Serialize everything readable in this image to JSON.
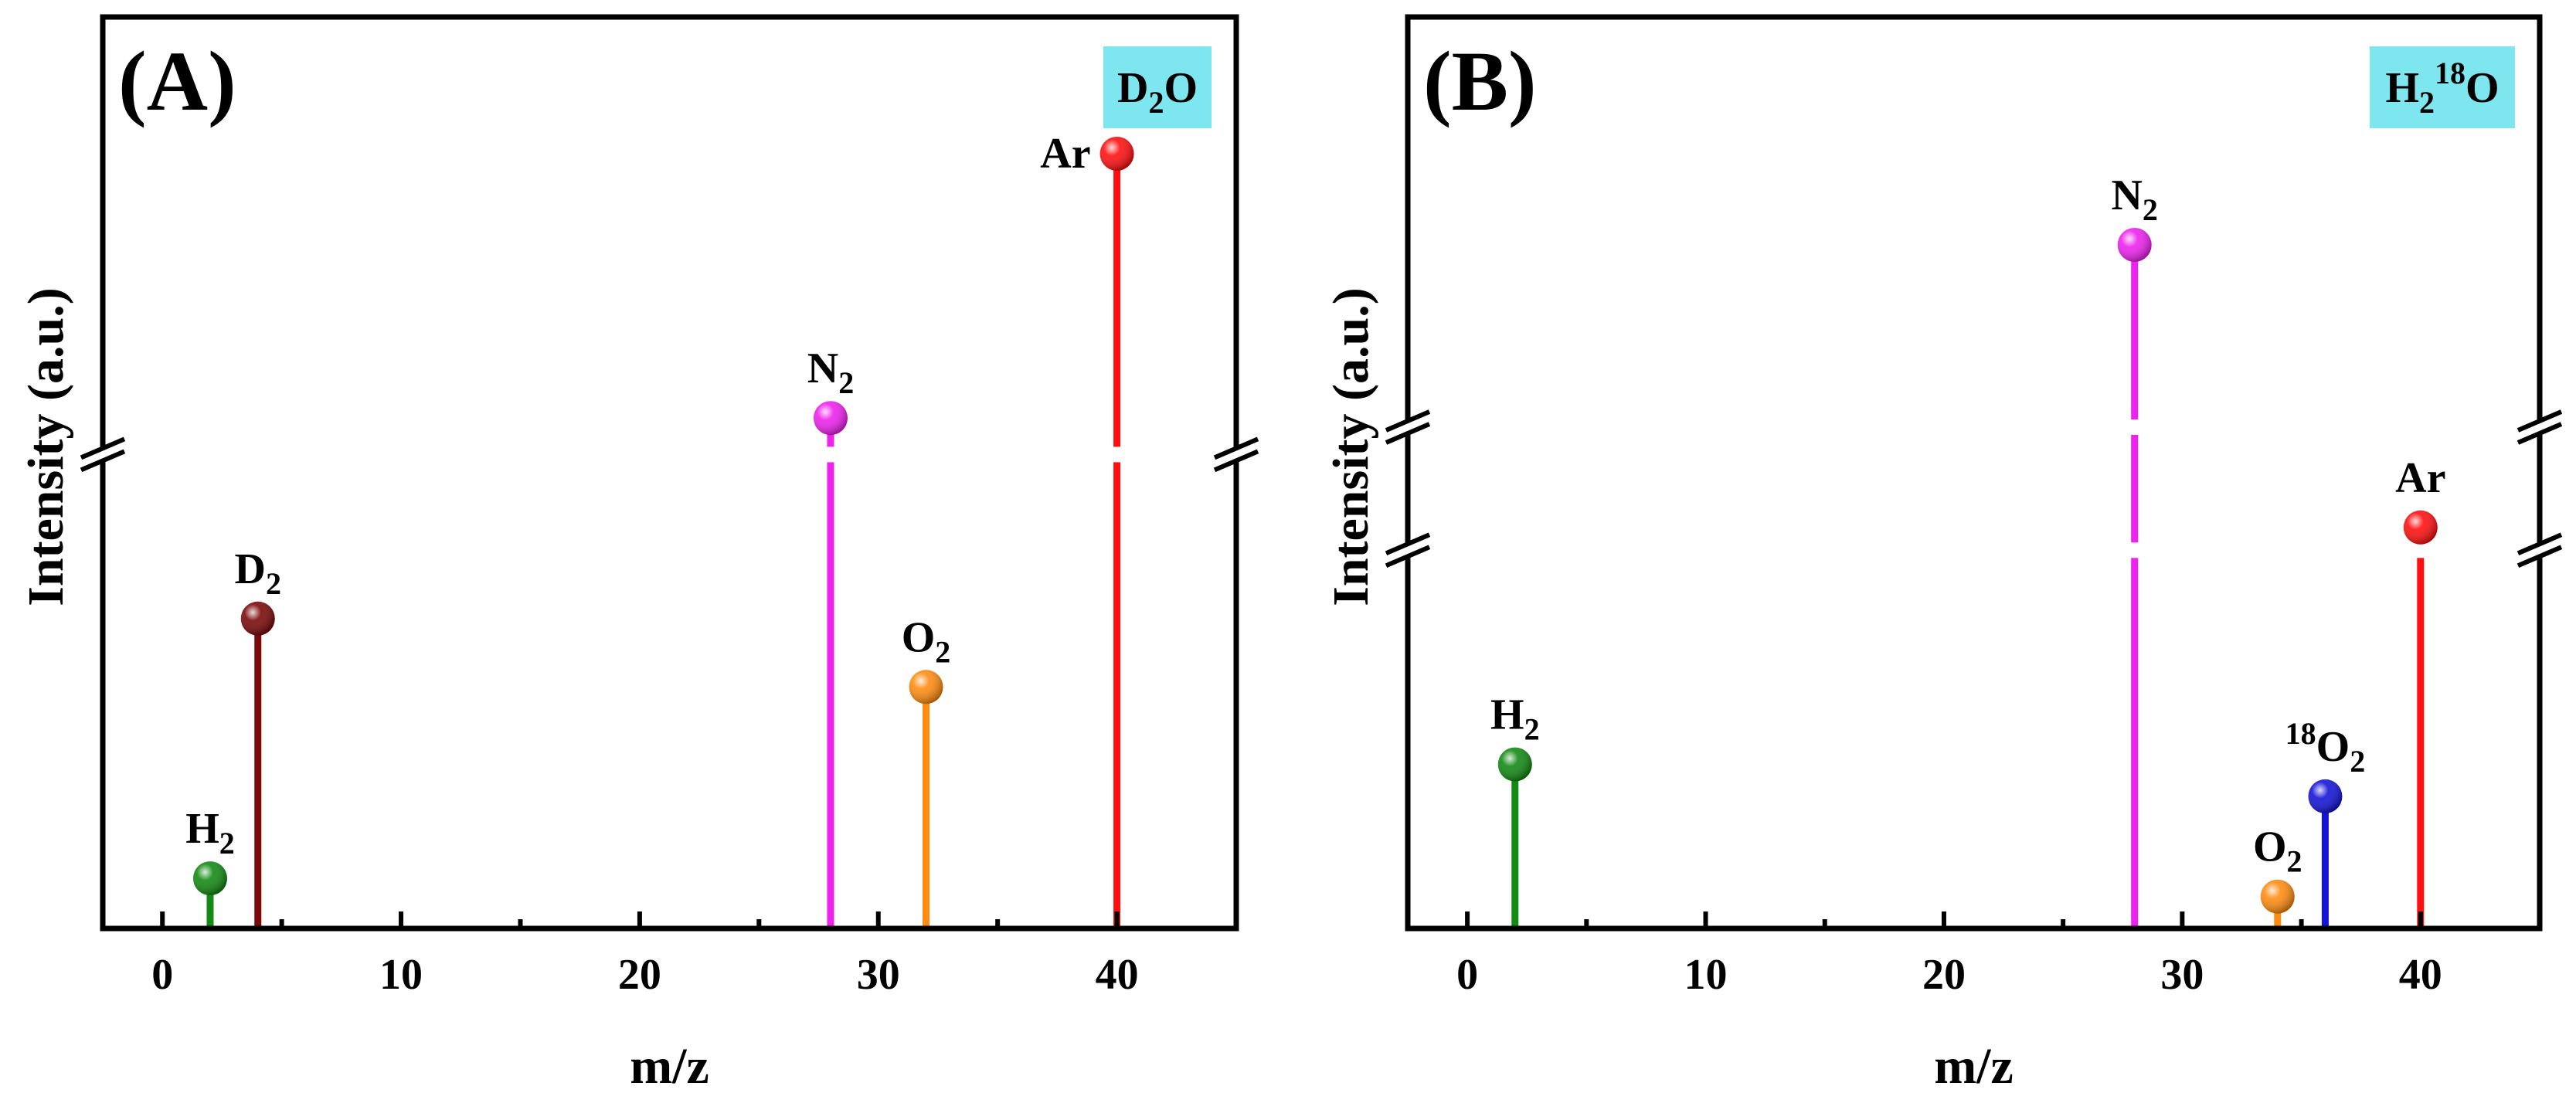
{
  "chart_data": [
    {
      "type": "stem",
      "panel_label": "(A)",
      "legend": {
        "main": "D",
        "sub": "2",
        "tail": "O",
        "background": "#7ee6ee"
      },
      "xlabel": "m/z",
      "ylabel": "Intensity (a.u.)",
      "xlim": [
        -2.5,
        45
      ],
      "xticks": [
        0,
        10,
        20,
        30,
        40
      ],
      "xtick_labels": [
        "0",
        "10",
        "20",
        "30",
        "40"
      ],
      "y_axis_broken": true,
      "y_break_level": 0.52,
      "series": [
        {
          "name": "H2",
          "label_main": "H",
          "label_sub": "2",
          "x": 2,
          "y": 0.055,
          "color": "#138a13",
          "label_pos": "above"
        },
        {
          "name": "D2",
          "label_main": "D",
          "label_sub": "2",
          "x": 4,
          "y": 0.34,
          "color": "#7a0a0a",
          "label_pos": "above"
        },
        {
          "name": "N2",
          "label_main": "N",
          "label_sub": "2",
          "x": 28,
          "y": 0.56,
          "color": "#ee22ee",
          "label_pos": "above"
        },
        {
          "name": "O2",
          "label_main": "O",
          "label_sub": "2",
          "x": 32,
          "y": 0.265,
          "color": "#ff8c10",
          "label_pos": "above"
        },
        {
          "name": "Ar",
          "label_main": "Ar",
          "label_sub": "",
          "x": 40,
          "y": 0.85,
          "color": "#ff1010",
          "label_pos": "left"
        }
      ]
    },
    {
      "type": "stem",
      "panel_label": "(B)",
      "legend": {
        "main": "H",
        "sub": "2",
        "sup": "18",
        "tail": "O",
        "background": "#7ee6ee"
      },
      "xlabel": "m/z",
      "ylabel": "Intensity (a.u.)",
      "xlim": [
        -2.5,
        45
      ],
      "xticks": [
        0,
        10,
        20,
        30,
        40
      ],
      "xtick_labels": [
        "0",
        "10",
        "20",
        "30",
        "40"
      ],
      "y_axis_broken": true,
      "y_break_levels": [
        0.55,
        0.415
      ],
      "series": [
        {
          "name": "H2",
          "label_main": "H",
          "label_sub": "2",
          "x": 2,
          "y": 0.18,
          "color": "#138a13",
          "label_pos": "above"
        },
        {
          "name": "N2",
          "label_main": "N",
          "label_sub": "2",
          "x": 28,
          "y": 0.75,
          "color": "#ee22ee",
          "label_pos": "above"
        },
        {
          "name": "O2",
          "label_main": "O",
          "label_sub": "2",
          "x": 34,
          "y": 0.035,
          "color": "#ff8c10",
          "label_pos": "above"
        },
        {
          "name": "18O2",
          "label_main": "O",
          "label_sub": "2",
          "label_sup": "18",
          "x": 36,
          "y": 0.145,
          "color": "#1414d8",
          "label_pos": "above"
        },
        {
          "name": "Ar",
          "label_main": "Ar",
          "label_sub": "",
          "x": 40,
          "y": 0.44,
          "color": "#ff1010",
          "label_pos": "above"
        }
      ]
    }
  ]
}
